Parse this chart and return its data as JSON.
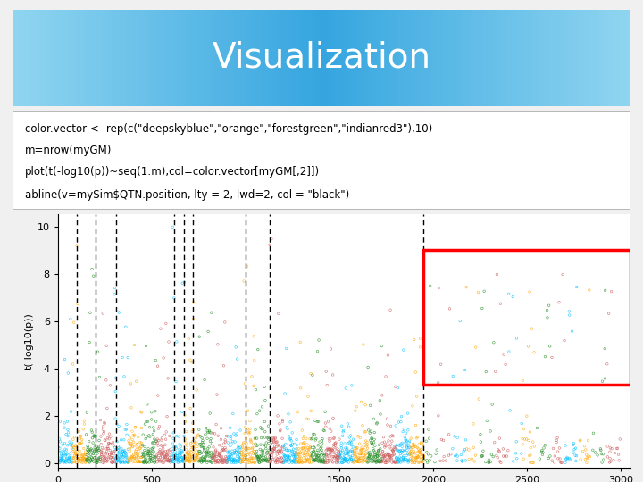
{
  "title": "Visualization",
  "title_text_color": "white",
  "title_fontsize": 28,
  "code_lines": [
    "color.vector <- rep(c(\"deepskyblue\",\"orange\",\"forestgreen\",\"indianred3\"),10)",
    "m=nrow(myGM)",
    "plot(t(-log10(p))~seq(1:m),col=color.vector[myGM[,2]])",
    "abline(v=mySim$QTN.position, lty = 2, lwd=2, col = \"black\")"
  ],
  "ylabel": "t(-log10(p))",
  "xlim": [
    0,
    3050
  ],
  "ylim": [
    -0.2,
    10.5
  ],
  "yticks": [
    0,
    2,
    4,
    6,
    8,
    10
  ],
  "xticks": [
    0,
    500,
    1000,
    1500,
    2000,
    2500,
    3000
  ],
  "colors": [
    "deepskyblue",
    "orange",
    "forestgreen",
    "indianred"
  ],
  "n_points": 3000,
  "vlines": [
    100,
    200,
    310,
    620,
    670,
    720,
    1000,
    1130,
    1950
  ],
  "rect_x1": 1950,
  "rect_x2": 3050,
  "rect_y1": 3.3,
  "rect_y2": 9.0,
  "rect_color": "red",
  "seed": 42,
  "title_grad_left": "#87CEEB",
  "title_grad_mid": "#1E90FF",
  "title_grad_right": "#87CEEB",
  "bg_color": "#F0F0F0"
}
